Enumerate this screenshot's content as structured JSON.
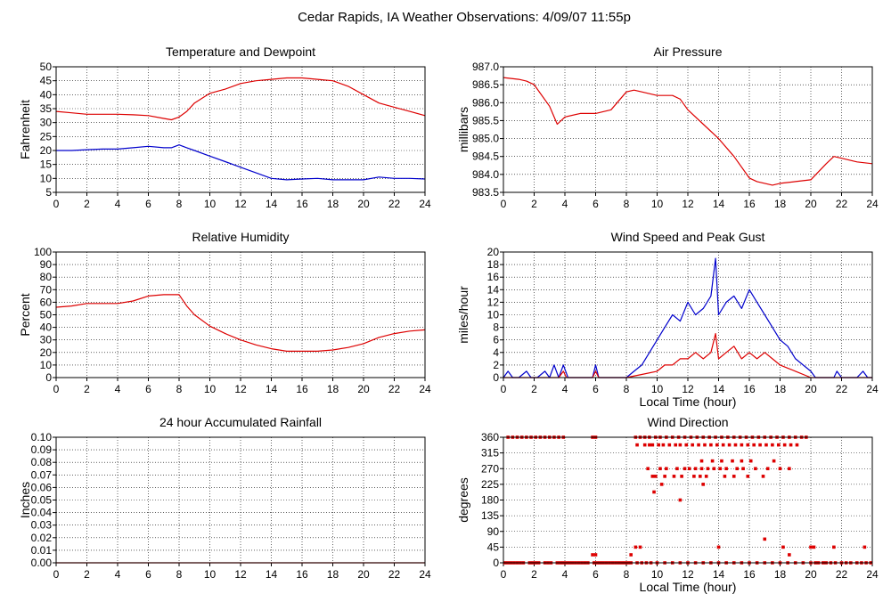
{
  "title": "Cedar Rapids, IA Weather Observations: 4/09/07 11:55p",
  "colors": {
    "red": "#dd0000",
    "blue": "#0000cc",
    "grid": "#000000"
  },
  "chart_data": [
    {
      "type": "line",
      "title": "Temperature and Dewpoint",
      "xlabel": "",
      "ylabel": "Fahrenheit",
      "xlim": [
        0,
        24
      ],
      "ylim": [
        5,
        50
      ],
      "xticks": [
        "0",
        "2",
        "4",
        "6",
        "8",
        "10",
        "12",
        "14",
        "16",
        "18",
        "20",
        "22",
        "24"
      ],
      "yticks": [
        "5",
        "10",
        "15",
        "20",
        "25",
        "30",
        "35",
        "40",
        "45",
        "50"
      ],
      "grid": true,
      "series": [
        {
          "color": "red",
          "x": [
            0,
            1,
            2,
            3,
            4,
            5,
            6,
            7,
            7.5,
            8,
            8.5,
            9,
            10,
            11,
            12,
            13,
            14,
            15,
            16,
            17,
            18,
            19,
            20,
            21,
            22,
            23,
            24
          ],
          "values": [
            34,
            33.5,
            33,
            33,
            33,
            32.8,
            32.5,
            31.5,
            31,
            32,
            34,
            37,
            40.5,
            42,
            44,
            45,
            45.5,
            46,
            46,
            45.5,
            45,
            43,
            40,
            37,
            35.5,
            34,
            32.5
          ]
        },
        {
          "color": "blue",
          "x": [
            0,
            1,
            2,
            3,
            4,
            5,
            6,
            7,
            7.5,
            8,
            8.5,
            9,
            10,
            11,
            12,
            13,
            14,
            15,
            16,
            17,
            18,
            19,
            20,
            21,
            22,
            23,
            24
          ],
          "values": [
            20,
            20,
            20.3,
            20.5,
            20.5,
            21,
            21.5,
            21,
            21,
            22,
            21,
            20,
            18,
            16,
            14,
            12,
            10,
            9.5,
            9.8,
            10,
            9.5,
            9.5,
            9.5,
            10.5,
            10,
            10,
            9.8
          ]
        }
      ]
    },
    {
      "type": "line",
      "title": "Air Pressure",
      "xlabel": "",
      "ylabel": "millibars",
      "xlim": [
        0,
        24
      ],
      "ylim": [
        983.5,
        987.0
      ],
      "xticks": [
        "0",
        "2",
        "4",
        "6",
        "8",
        "10",
        "12",
        "14",
        "16",
        "18",
        "20",
        "22",
        "24"
      ],
      "yticks": [
        "983.5",
        "984.0",
        "984.5",
        "985.0",
        "985.5",
        "986.0",
        "986.5",
        "987.0"
      ],
      "grid": true,
      "series": [
        {
          "color": "red",
          "x": [
            0,
            1,
            1.5,
            2,
            3,
            3.5,
            4,
            5,
            6,
            7,
            8,
            8.5,
            9,
            10,
            11,
            11.5,
            12,
            13,
            14,
            15,
            16,
            16.5,
            17,
            17.5,
            18,
            19,
            20,
            21,
            21.5,
            22,
            23,
            24
          ],
          "values": [
            986.7,
            986.65,
            986.6,
            986.5,
            985.9,
            985.4,
            985.6,
            985.7,
            985.7,
            985.8,
            986.3,
            986.35,
            986.3,
            986.2,
            986.2,
            986.1,
            985.8,
            985.4,
            985.0,
            984.5,
            983.9,
            983.8,
            983.75,
            983.7,
            983.75,
            983.8,
            983.85,
            984.3,
            984.5,
            984.45,
            984.35,
            984.3
          ]
        }
      ]
    },
    {
      "type": "line",
      "title": "Relative Humidity",
      "xlabel": "",
      "ylabel": "Percent",
      "xlim": [
        0,
        24
      ],
      "ylim": [
        0,
        100
      ],
      "xticks": [
        "0",
        "2",
        "4",
        "6",
        "8",
        "10",
        "12",
        "14",
        "16",
        "18",
        "20",
        "22",
        "24"
      ],
      "yticks": [
        "0",
        "10",
        "20",
        "30",
        "40",
        "50",
        "60",
        "70",
        "80",
        "90",
        "100"
      ],
      "grid": true,
      "series": [
        {
          "color": "red",
          "x": [
            0,
            1,
            2,
            3,
            4,
            5,
            6,
            7,
            8,
            8.5,
            9,
            10,
            11,
            12,
            13,
            14,
            15,
            16,
            17,
            18,
            19,
            20,
            21,
            22,
            23,
            24
          ],
          "values": [
            56,
            57,
            59,
            59,
            59,
            61,
            65,
            66,
            66,
            57,
            50,
            41,
            35,
            30,
            26,
            23,
            21,
            21,
            21,
            22,
            24,
            27,
            32,
            35,
            37,
            38
          ]
        }
      ]
    },
    {
      "type": "line",
      "title": "Wind Speed and Peak Gust",
      "xlabel": "Local Time (hour)",
      "ylabel": "miles/hour",
      "xlim": [
        0,
        24
      ],
      "ylim": [
        0,
        20
      ],
      "xticks": [
        "0",
        "2",
        "4",
        "6",
        "8",
        "10",
        "12",
        "14",
        "16",
        "18",
        "20",
        "22",
        "24"
      ],
      "yticks": [
        "0",
        "2",
        "4",
        "6",
        "8",
        "10",
        "12",
        "14",
        "16",
        "18",
        "20"
      ],
      "grid": true,
      "series": [
        {
          "color": "blue",
          "x": [
            0,
            0.3,
            0.6,
            1,
            1.5,
            1.8,
            2.2,
            2.7,
            3,
            3.3,
            3.6,
            3.9,
            4.2,
            5.8,
            6,
            6.2,
            6.5,
            8,
            8.5,
            9,
            9.5,
            10,
            10.5,
            11,
            11.5,
            12,
            12.5,
            13,
            13.5,
            13.8,
            14,
            14.5,
            15,
            15.5,
            16,
            16.5,
            17,
            17.5,
            18,
            18.5,
            19,
            19.5,
            20,
            20.3,
            21,
            21.5,
            21.7,
            22,
            23,
            23.4,
            23.7,
            24
          ],
          "values": [
            0,
            1,
            0,
            0,
            1,
            0,
            0,
            1,
            0,
            2,
            0,
            2,
            0,
            0,
            2,
            0,
            0,
            0,
            1,
            2,
            4,
            6,
            8,
            10,
            9,
            12,
            10,
            11,
            13,
            19,
            10,
            12,
            13,
            11,
            14,
            12,
            10,
            8,
            6,
            5,
            3,
            2,
            1,
            0,
            0,
            0,
            1,
            0,
            0,
            1,
            0,
            0
          ]
        },
        {
          "color": "red",
          "x": [
            0,
            3.6,
            3.9,
            4.1,
            5.8,
            6,
            6.2,
            8,
            9,
            10,
            10.5,
            11,
            11.5,
            12,
            12.5,
            13,
            13.5,
            13.8,
            14,
            14.5,
            15,
            15.5,
            16,
            16.5,
            17,
            17.5,
            18,
            18.5,
            19,
            20,
            24
          ],
          "values": [
            0,
            0,
            1,
            0,
            0,
            1,
            0,
            0,
            0.5,
            1,
            2,
            2,
            3,
            3,
            4,
            3,
            4,
            7,
            3,
            4,
            5,
            3,
            4,
            3,
            4,
            3,
            2,
            1.5,
            1,
            0,
            0
          ]
        }
      ]
    },
    {
      "type": "line",
      "title": "24 hour Accumulated Rainfall",
      "xlabel": "",
      "ylabel": "Inches",
      "xlim": [
        0,
        24
      ],
      "ylim": [
        0,
        0.1
      ],
      "xticks": [
        "0",
        "2",
        "4",
        "6",
        "8",
        "10",
        "12",
        "14",
        "16",
        "18",
        "20",
        "22",
        "24"
      ],
      "yticks": [
        "0.00",
        "0.01",
        "0.02",
        "0.03",
        "0.04",
        "0.05",
        "0.06",
        "0.07",
        "0.08",
        "0.09",
        "0.10"
      ],
      "grid": true,
      "series": [
        {
          "color": "red",
          "x": [
            0,
            24
          ],
          "values": [
            0,
            0
          ]
        }
      ]
    },
    {
      "type": "scatter",
      "title": "Wind Direction",
      "xlabel": "Local Time (hour)",
      "ylabel": "degrees",
      "xlim": [
        0,
        24
      ],
      "ylim": [
        0,
        360
      ],
      "xticks": [
        "0",
        "2",
        "4",
        "6",
        "8",
        "10",
        "12",
        "14",
        "16",
        "18",
        "20",
        "22",
        "24"
      ],
      "yticks": [
        "0",
        "45",
        "90",
        "135",
        "180",
        "225",
        "270",
        "315",
        "360"
      ],
      "grid": true,
      "series": [
        {
          "color": "red",
          "x": [
            0.1,
            0.3,
            0.5,
            0.7,
            0.9,
            1.1,
            1.3,
            1.7,
            1.9,
            2.1,
            2.3,
            2.7,
            2.9,
            3.1,
            3.5,
            3.7,
            3.9,
            4.1,
            4.3,
            4.5,
            4.7,
            4.9,
            5.1,
            5.3,
            5.5,
            5.9,
            6.1,
            6.3,
            6.5,
            6.7,
            6.9,
            7.1,
            7.3,
            7.5,
            7.7,
            7.9,
            8.1,
            8.3,
            8.7,
            9,
            9.3,
            9.6,
            10,
            10.5,
            11,
            11.5,
            12,
            12.5,
            13,
            13.5,
            14,
            14.5,
            15,
            15.5,
            16,
            16.5,
            17,
            17.5,
            18,
            18.5,
            19,
            19.5,
            20,
            20.3,
            20.5,
            20.8,
            21,
            21.3,
            21.6,
            22,
            22.3,
            22.6,
            23,
            23.3,
            23.6,
            23.9,
            0.3,
            0.6,
            0.9,
            1.2,
            1.5,
            1.8,
            2.1,
            2.4,
            2.7,
            3,
            3.3,
            3.6,
            3.9,
            5.8,
            6.0,
            8.6,
            8.9,
            9.2,
            9.5,
            9.9,
            10.2,
            10.6,
            11,
            11.4,
            11.8,
            12.2,
            12.6,
            13,
            13.4,
            13.8,
            14.2,
            14.6,
            15,
            15.4,
            15.8,
            16.2,
            16.6,
            17,
            17.4,
            17.8,
            18.2,
            18.6,
            19,
            19.4,
            19.7,
            8.7,
            9.2,
            9.5,
            9.7,
            10.1,
            10.4,
            10.8,
            11.2,
            11.5,
            11.9,
            12.3,
            12.7,
            13.1,
            13.5,
            13.9,
            14.3,
            14.7,
            15.1,
            15.5,
            15.9,
            16.3,
            16.7,
            17.1,
            17.5,
            17.9,
            18.3,
            18.7,
            19.1,
            9.4,
            10.2,
            10.6,
            11.3,
            11.8,
            12.1,
            12.5,
            12.9,
            13.3,
            13.7,
            14.1,
            14.5,
            15.2,
            15.6,
            16.4,
            17.2,
            18.0,
            18.6,
            9.7,
            9.9,
            10.5,
            11.1,
            11.6,
            12.4,
            12.8,
            13.2,
            14.4,
            15.0,
            15.9,
            16.9,
            12.9,
            13.6,
            14.2,
            14.9,
            15.5,
            16.1,
            17.6,
            9.8,
            10.3,
            11.5,
            13.0,
            5.8,
            6.0,
            8.3,
            8.6,
            8.9,
            14,
            17.0,
            18.2,
            18.6,
            20.0,
            20.2,
            21.5,
            23.5
          ],
          "values": [
            0,
            0,
            0,
            0,
            0,
            0,
            0,
            0,
            0,
            0,
            0,
            0,
            0,
            0,
            0,
            0,
            0,
            0,
            0,
            0,
            0,
            0,
            0,
            0,
            0,
            0,
            0,
            0,
            0,
            0,
            0,
            0,
            0,
            0,
            0,
            0,
            0,
            0,
            0,
            0,
            0,
            0,
            0,
            0,
            0,
            0,
            0,
            0,
            0,
            0,
            0,
            0,
            0,
            0,
            0,
            0,
            0,
            0,
            0,
            0,
            0,
            0,
            0,
            0,
            0,
            0,
            0,
            0,
            0,
            0,
            0,
            0,
            0,
            0,
            0,
            0,
            360,
            360,
            360,
            360,
            360,
            360,
            360,
            360,
            360,
            360,
            360,
            360,
            360,
            360,
            360,
            360,
            360,
            360,
            360,
            360,
            360,
            360,
            360,
            360,
            360,
            360,
            360,
            360,
            360,
            360,
            360,
            360,
            360,
            360,
            360,
            360,
            360,
            360,
            360,
            360,
            360,
            360,
            360,
            360,
            360,
            338,
            338,
            338,
            338,
            338,
            338,
            338,
            338,
            338,
            338,
            338,
            338,
            338,
            338,
            338,
            338,
            338,
            338,
            338,
            338,
            338,
            338,
            338,
            338,
            338,
            338,
            338,
            338,
            270,
            270,
            270,
            270,
            270,
            270,
            270,
            270,
            270,
            270,
            270,
            270,
            270,
            270,
            270,
            270,
            270,
            270,
            248,
            248,
            248,
            248,
            248,
            248,
            248,
            248,
            248,
            248,
            248,
            248,
            292,
            292,
            292,
            292,
            292,
            292,
            292,
            203,
            225,
            180,
            225,
            23,
            23,
            23,
            45,
            45,
            45,
            68,
            45,
            23,
            45,
            45,
            45,
            45
          ]
        }
      ]
    }
  ]
}
